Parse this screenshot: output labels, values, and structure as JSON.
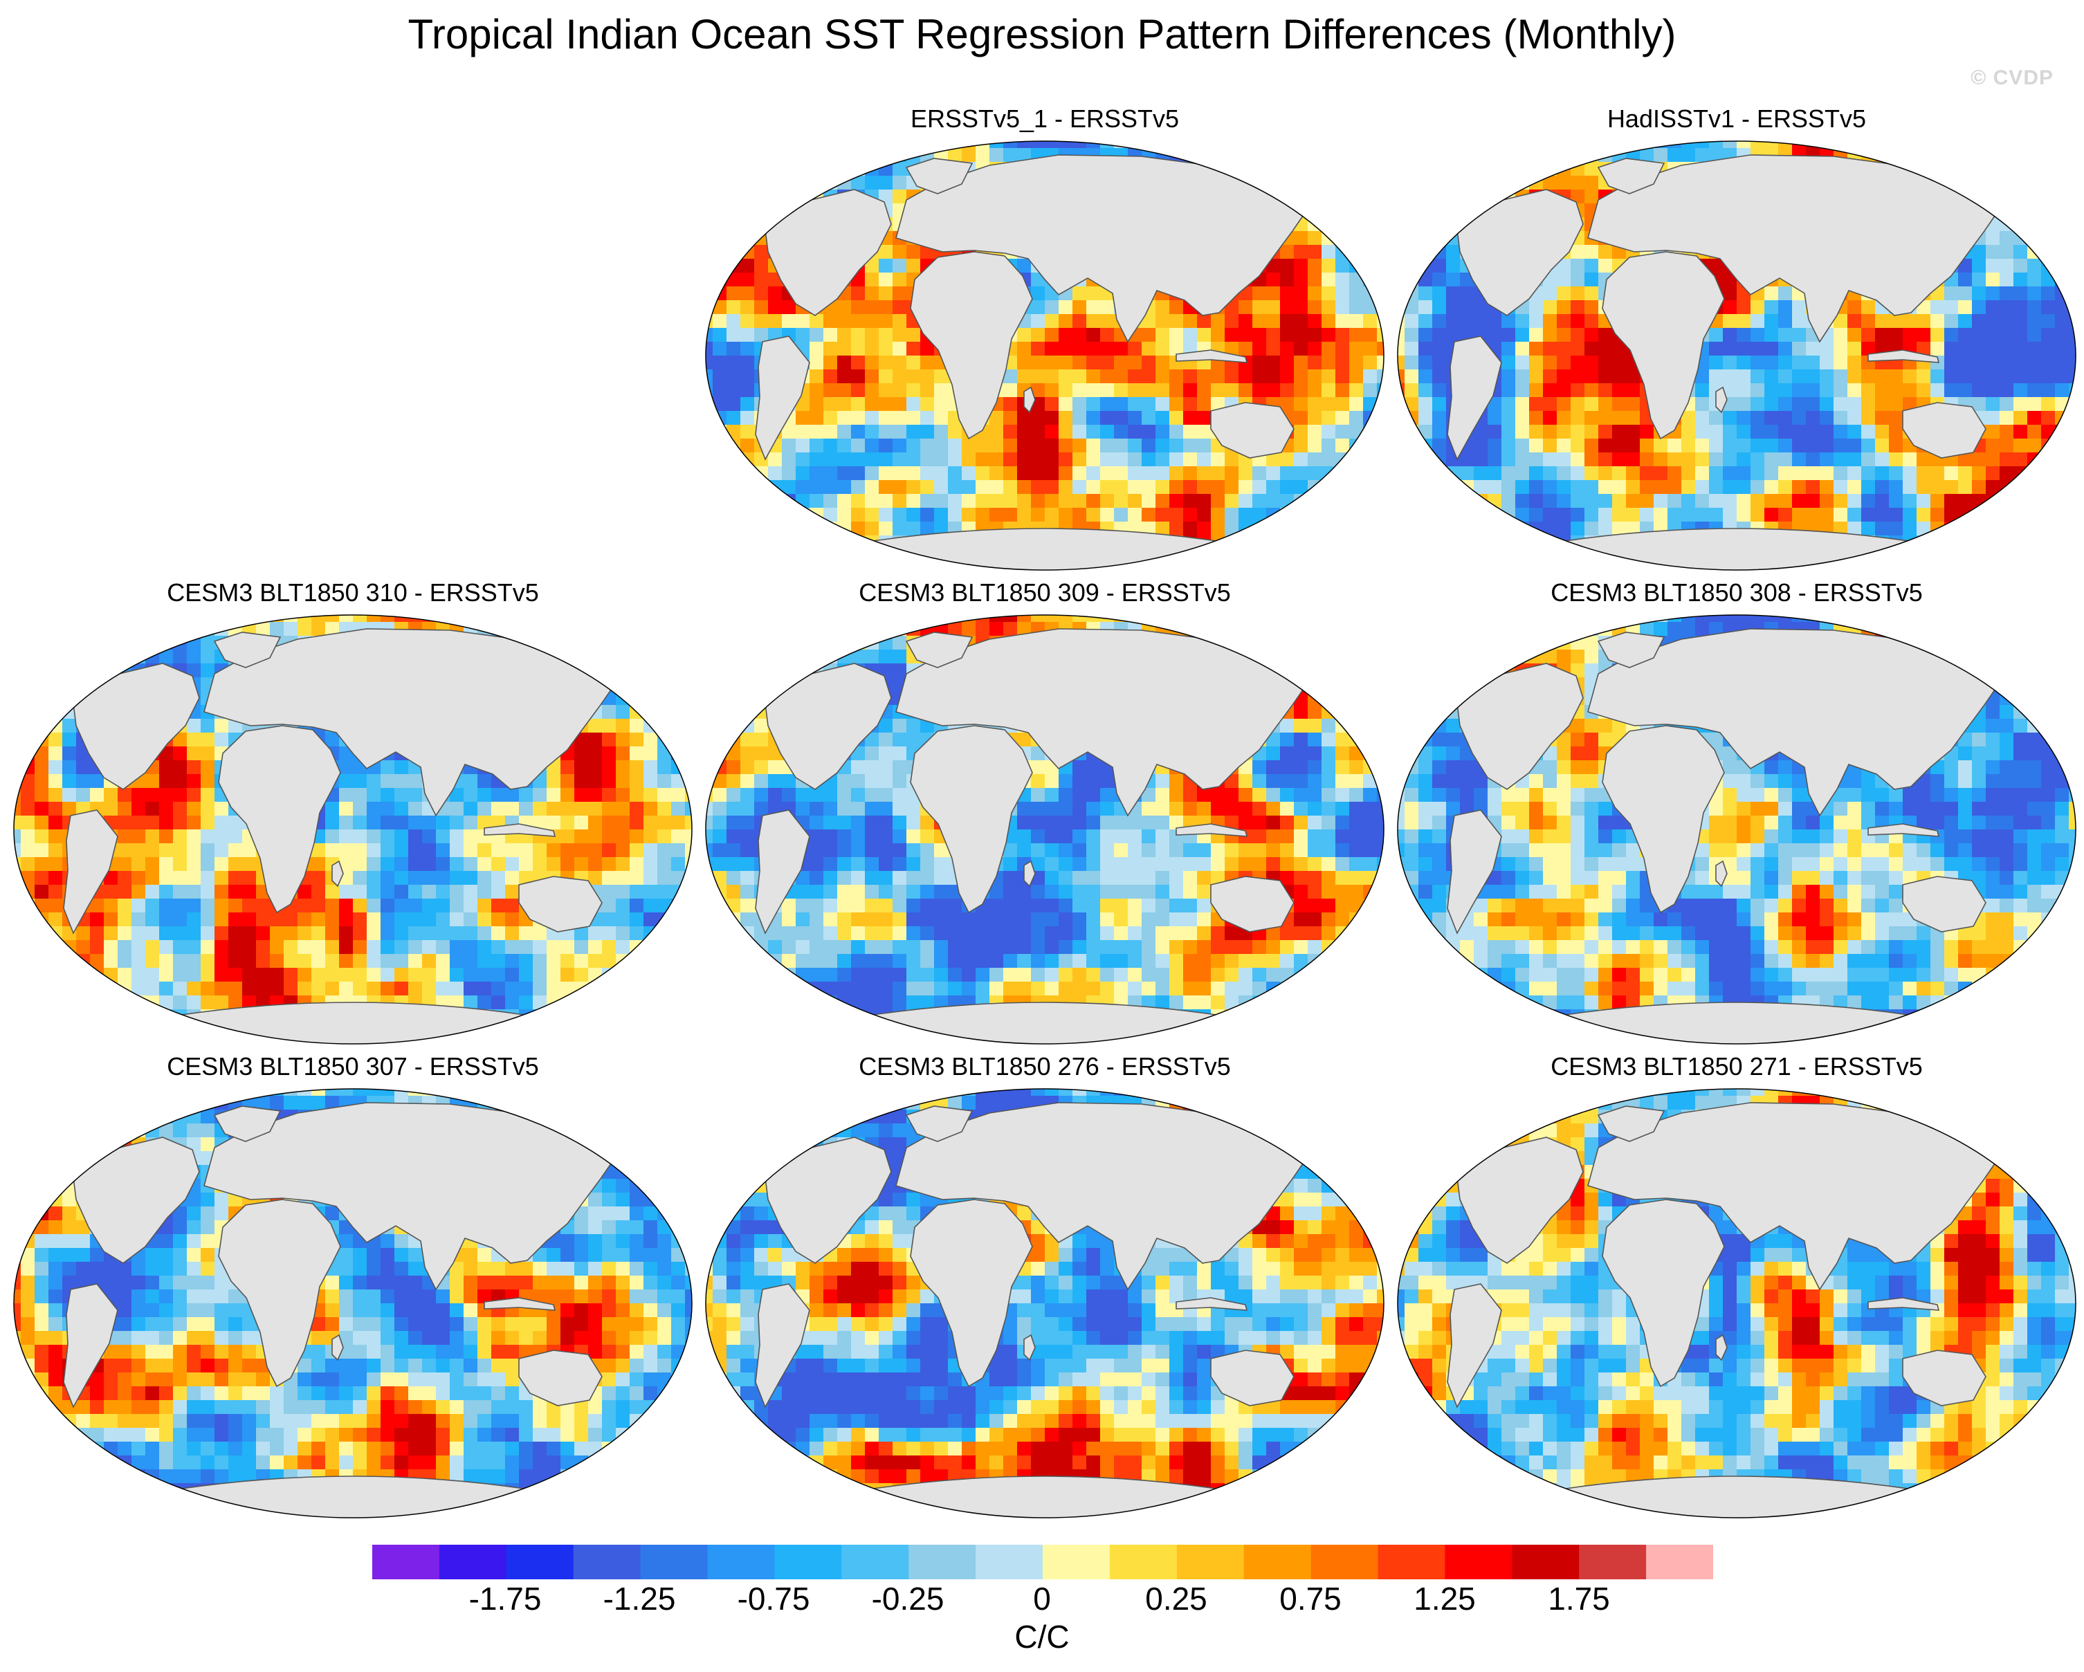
{
  "title": "Tropical Indian Ocean SST Regression Pattern Differences (Monthly)",
  "watermark": "© CVDP",
  "panels": [
    {
      "id": "p1",
      "title": "ERSSTv5_1 - ERSSTv5",
      "seed": 3
    },
    {
      "id": "p2",
      "title": "HadISSTv1 - ERSSTv5",
      "seed": 7
    },
    {
      "id": "p3",
      "title": "CESM3 BLT1850 310 - ERSSTv5",
      "seed": 11
    },
    {
      "id": "p4",
      "title": "CESM3 BLT1850 309 - ERSSTv5",
      "seed": 17
    },
    {
      "id": "p5",
      "title": "CESM3 BLT1850 308 - ERSSTv5",
      "seed": 23
    },
    {
      "id": "p6",
      "title": "CESM3 BLT1850 307 - ERSSTv5",
      "seed": 29
    },
    {
      "id": "p7",
      "title": "CESM3 BLT1850 276 - ERSSTv5",
      "seed": 31
    },
    {
      "id": "p8",
      "title": "CESM3 BLT1850 271 - ERSSTv5",
      "seed": 37
    }
  ],
  "colorbar": {
    "colors": [
      "#7d22e8",
      "#3a17ef",
      "#1a2ff0",
      "#3c5de0",
      "#2f78ea",
      "#2a96f5",
      "#22b2f7",
      "#4ac0f5",
      "#8fcde8",
      "#b9e1f3",
      "#fff9a6",
      "#fde040",
      "#ffc21c",
      "#ff9b00",
      "#ff7400",
      "#ff3c0a",
      "#ff0000",
      "#cf0000",
      "#d33b3b",
      "#ffb3b3"
    ],
    "tick_labels": [
      "-1.75",
      "-1.25",
      "-0.75",
      "-0.25",
      "0",
      "0.25",
      "0.75",
      "1.25",
      "1.75"
    ],
    "units": "C/C"
  },
  "map_colors": {
    "land": "#e3e3e3",
    "coast": "#555555",
    "outline": "#000000"
  }
}
